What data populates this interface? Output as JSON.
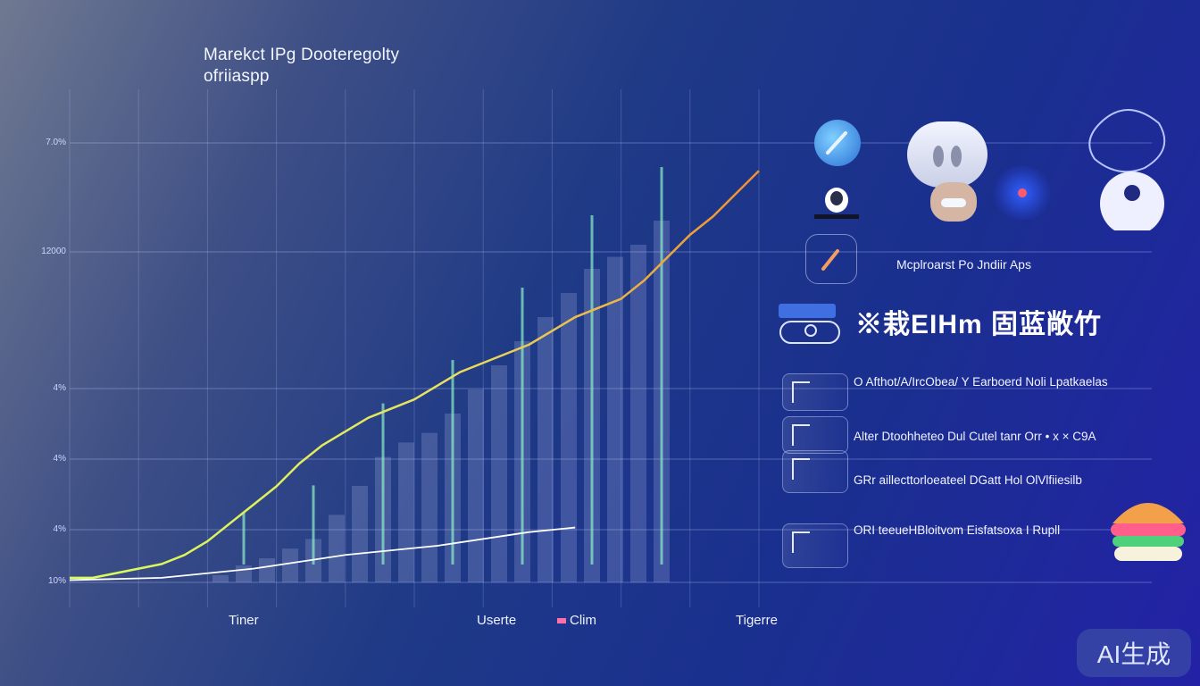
{
  "chart_data": {
    "type": "line",
    "title": "Marekct IPg Dooteregolty",
    "subtitle": "ofriiaspp",
    "ylabel": "",
    "y_ticks": [
      "7.0%",
      "12000",
      "4%",
      "4%",
      "4%",
      "10%"
    ],
    "x_labels": [
      "Tiner",
      "Userte",
      "Tigerre"
    ],
    "legend": [
      "Clim"
    ],
    "series": [
      {
        "name": "Clim",
        "color": "#f0902f",
        "x": [
          0,
          1,
          2,
          3,
          4,
          5,
          6,
          7,
          8,
          9,
          10,
          11,
          12,
          13,
          14,
          15,
          16,
          17,
          18,
          19,
          20,
          21,
          22,
          23,
          24,
          25,
          26,
          27,
          28,
          29,
          30
        ],
        "values": [
          1,
          1,
          2,
          3,
          4,
          6,
          9,
          13,
          17,
          21,
          26,
          30,
          33,
          36,
          38,
          40,
          43,
          46,
          48,
          50,
          52,
          55,
          58,
          60,
          62,
          66,
          71,
          76,
          80,
          85,
          90
        ]
      },
      {
        "name": "",
        "color": "#ffffff",
        "x": [
          0,
          4,
          8,
          12,
          16,
          20,
          22
        ],
        "values": [
          0.5,
          1,
          3,
          6,
          8,
          11,
          12
        ]
      }
    ],
    "bars": [
      3,
      7,
      10,
      14,
      18,
      28,
      40,
      52,
      58,
      62,
      70,
      80,
      90,
      100,
      110,
      120,
      130,
      135,
      140,
      150
    ],
    "ylim": [
      0,
      100
    ],
    "grid": true
  },
  "panel": {
    "subheading": "Mcplroarst Po Jndiir Aps",
    "heading": "※栽EIHm 固蓝敞竹",
    "rows": [
      {
        "text": "O Afthot/A/IrcObea/ Y Earboerd Noli Lpatkaelas"
      },
      {
        "text": "Alter Dtoohheteo Dul Cutel tanr Orr • x × C9A"
      },
      {
        "text": "GRr aillecttorloeateel DGatt Hol OlVlfiiesilb"
      },
      {
        "text": "ORI teeueHBloitvom Eisfatsoxa I Rupll"
      }
    ]
  },
  "badge": "AI生成",
  "icons": [
    "brush-icon",
    "penguin-icon",
    "ghost-icon",
    "bear-icon",
    "orbit-icon",
    "robot-icon",
    "pencil-icon",
    "toggle-icon",
    "lab-icon",
    "burger-icon"
  ]
}
